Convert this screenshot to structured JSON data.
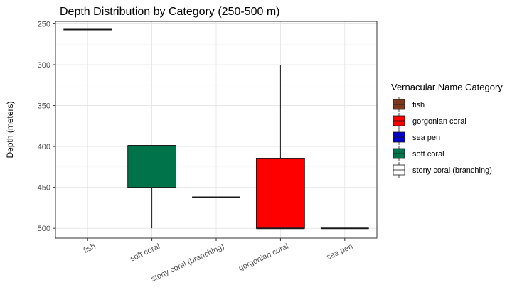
{
  "chart_data": {
    "type": "boxplot",
    "title": "Depth Distribution by Category (250-500 m)",
    "xlabel": "",
    "ylabel": "Depth (meters)",
    "y_reversed": true,
    "ylim": [
      247,
      512
    ],
    "yticks": [
      250,
      300,
      350,
      400,
      450,
      500
    ],
    "categories": [
      "fish",
      "soft coral",
      "stony coral (branching)",
      "gorgonian coral",
      "sea pen"
    ],
    "boxes": [
      {
        "category": "fish",
        "legend": "fish",
        "min": 257,
        "q1": 257,
        "median": 257,
        "q3": 257,
        "max": 257,
        "fill": "#7b3a1f"
      },
      {
        "category": "soft coral",
        "legend": "soft coral",
        "min": 399,
        "q1": 399,
        "median": 399,
        "q3": 450,
        "max": 500,
        "fill": "#00734a"
      },
      {
        "category": "stony coral (branching)",
        "legend": "stony coral (branching)",
        "min": 462,
        "q1": 462,
        "median": 462,
        "q3": 462,
        "max": 462,
        "fill": "#ffffff"
      },
      {
        "category": "gorgonian coral",
        "legend": "gorgonian coral",
        "min": 300,
        "q1": 415,
        "median": 500,
        "q3": 500,
        "max": 500,
        "fill": "#ff0000"
      },
      {
        "category": "sea pen",
        "legend": "sea pen",
        "min": 500,
        "q1": 500,
        "median": 500,
        "q3": 500,
        "max": 500,
        "fill": "#0000cd"
      }
    ],
    "legend": {
      "title": "Vernacular Name Category",
      "placement": "right",
      "entries": [
        {
          "label": "fish",
          "color": "#7b3a1f"
        },
        {
          "label": "gorgonian coral",
          "color": "#ff0000"
        },
        {
          "label": "sea pen",
          "color": "#0000cd"
        },
        {
          "label": "soft coral",
          "color": "#00734a"
        },
        {
          "label": "stony coral (branching)",
          "color": "#ffffff"
        }
      ]
    },
    "grid": true,
    "theme": "bw"
  }
}
